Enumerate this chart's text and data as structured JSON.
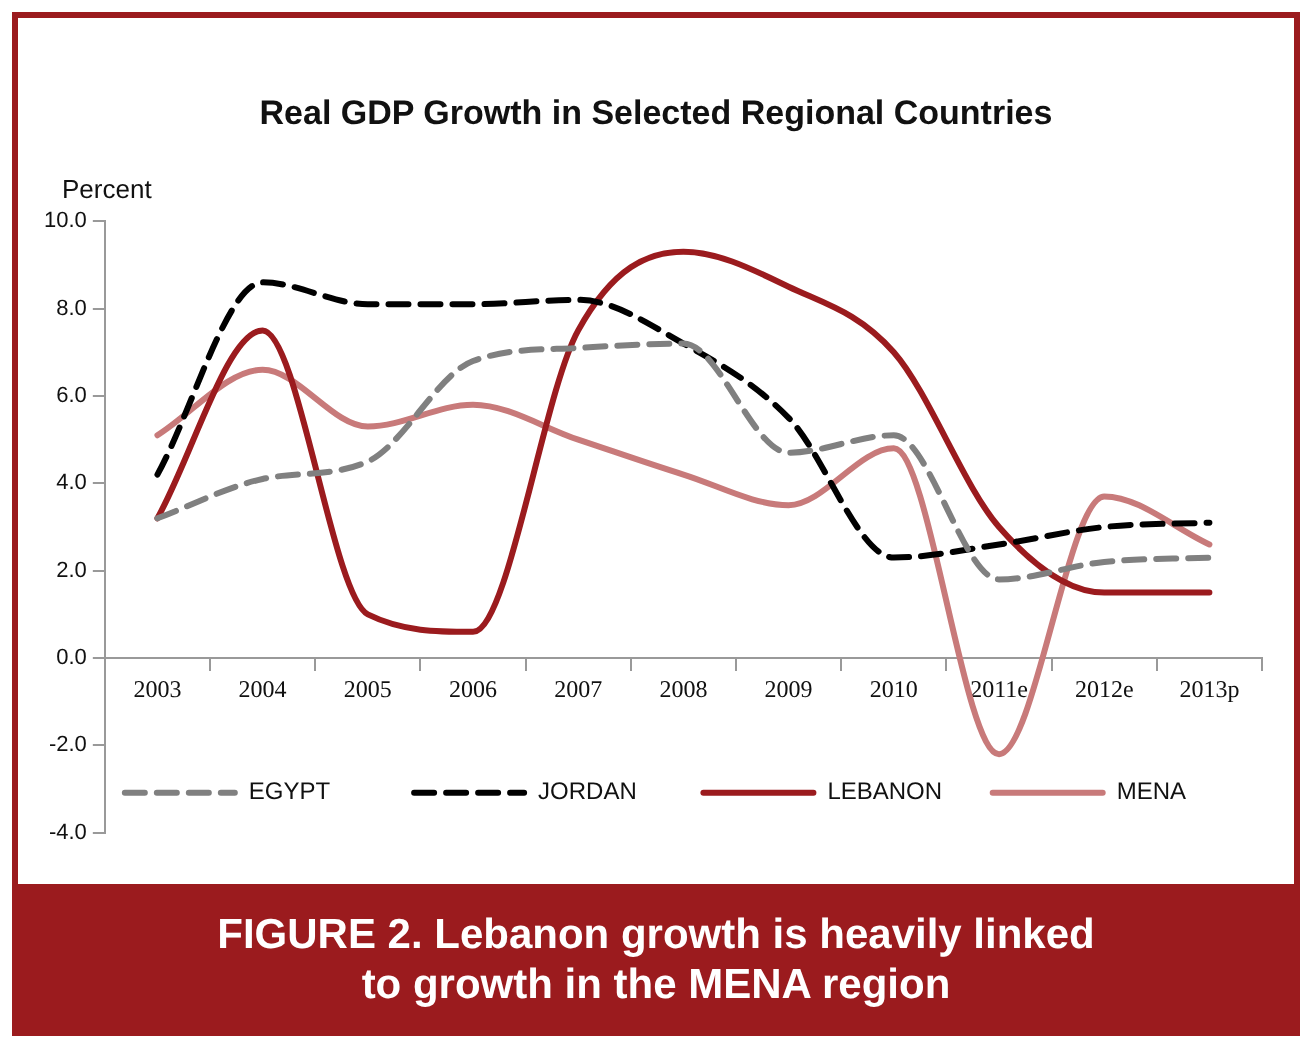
{
  "chart_data": {
    "type": "line",
    "title": "Real GDP Growth in Selected Regional Countries",
    "ylabel": "Percent",
    "categories": [
      "2003",
      "2004",
      "2005",
      "2006",
      "2007",
      "2008",
      "2009",
      "2010",
      "2011e",
      "2012e",
      "2013p"
    ],
    "series": [
      {
        "name": "EGYPT",
        "color": "#808080",
        "line_style": "dashed",
        "values": [
          3.2,
          4.1,
          4.5,
          6.8,
          7.1,
          7.2,
          4.7,
          5.1,
          1.8,
          2.2,
          2.3
        ]
      },
      {
        "name": "JORDAN",
        "color": "#000000",
        "line_style": "dashed",
        "values": [
          4.2,
          8.6,
          8.1,
          8.1,
          8.2,
          7.2,
          5.5,
          2.3,
          2.6,
          3.0,
          3.1
        ]
      },
      {
        "name": "LEBANON",
        "color": "#9b1b1e",
        "line_style": "solid",
        "values": [
          3.2,
          7.5,
          1.0,
          0.6,
          7.5,
          9.3,
          8.5,
          7.0,
          3.0,
          1.5,
          1.5
        ]
      },
      {
        "name": "MENA",
        "color": "#c87a7a",
        "line_style": "solid",
        "values": [
          5.1,
          6.6,
          5.3,
          5.8,
          5.0,
          4.2,
          3.5,
          4.8,
          -2.2,
          3.7,
          2.6
        ]
      }
    ],
    "ylim": [
      -4,
      10
    ],
    "yticks": [
      {
        "value": -4,
        "label": "-4.0"
      },
      {
        "value": -2,
        "label": "-2.0"
      },
      {
        "value": 0,
        "label": "0.0"
      },
      {
        "value": 2,
        "label": "2.0"
      },
      {
        "value": 4,
        "label": "4.0"
      },
      {
        "value": 6,
        "label": "6.0"
      },
      {
        "value": 8,
        "label": "8.0"
      },
      {
        "value": 10,
        "label": "10.0"
      }
    ],
    "grid": false,
    "legend": "bottom",
    "marker": "none",
    "annotations": [
      "FIGURE 2. Lebanon growth is heavily linked to growth in the MENA region"
    ]
  }
}
